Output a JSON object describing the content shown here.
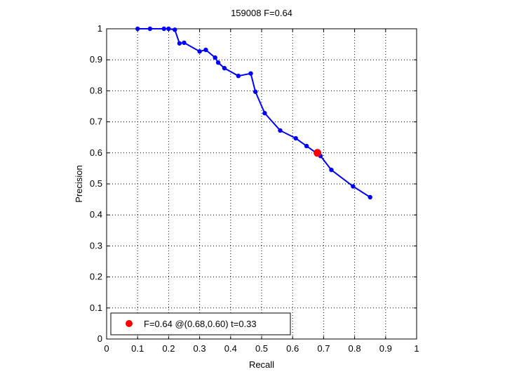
{
  "chart_data": {
    "type": "line",
    "title": "159008 F=0.64",
    "xlabel": "Recall",
    "ylabel": "Precision",
    "xlim": [
      0,
      1
    ],
    "ylim": [
      0,
      1
    ],
    "grid": true,
    "x_ticks": [
      "0",
      "0.1",
      "0.2",
      "0.3",
      "0.4",
      "0.5",
      "0.6",
      "0.7",
      "0.8",
      "0.9",
      "1"
    ],
    "y_ticks": [
      "0",
      "0.1",
      "0.2",
      "0.3",
      "0.4",
      "0.5",
      "0.6",
      "0.7",
      "0.8",
      "0.9",
      "1"
    ],
    "series": [
      {
        "color": "#0000ff",
        "points": [
          [
            0.1,
            1.0
          ],
          [
            0.14,
            1.0
          ],
          [
            0.185,
            1.0
          ],
          [
            0.2,
            1.0
          ],
          [
            0.22,
            0.997
          ],
          [
            0.235,
            0.953
          ],
          [
            0.25,
            0.955
          ],
          [
            0.3,
            0.927
          ],
          [
            0.32,
            0.932
          ],
          [
            0.35,
            0.907
          ],
          [
            0.36,
            0.891
          ],
          [
            0.38,
            0.873
          ],
          [
            0.425,
            0.848
          ],
          [
            0.465,
            0.856
          ],
          [
            0.48,
            0.797
          ],
          [
            0.51,
            0.728
          ],
          [
            0.56,
            0.672
          ],
          [
            0.61,
            0.647
          ],
          [
            0.645,
            0.622
          ],
          [
            0.69,
            0.59
          ],
          [
            0.725,
            0.545
          ],
          [
            0.795,
            0.492
          ],
          [
            0.85,
            0.457
          ]
        ]
      }
    ],
    "best_point": {
      "x": 0.68,
      "y": 0.6,
      "color": "#ff0000"
    },
    "legend": {
      "position": "bottom-left",
      "label": "F=0.64 @(0.68,0.60) t=0.33"
    }
  }
}
